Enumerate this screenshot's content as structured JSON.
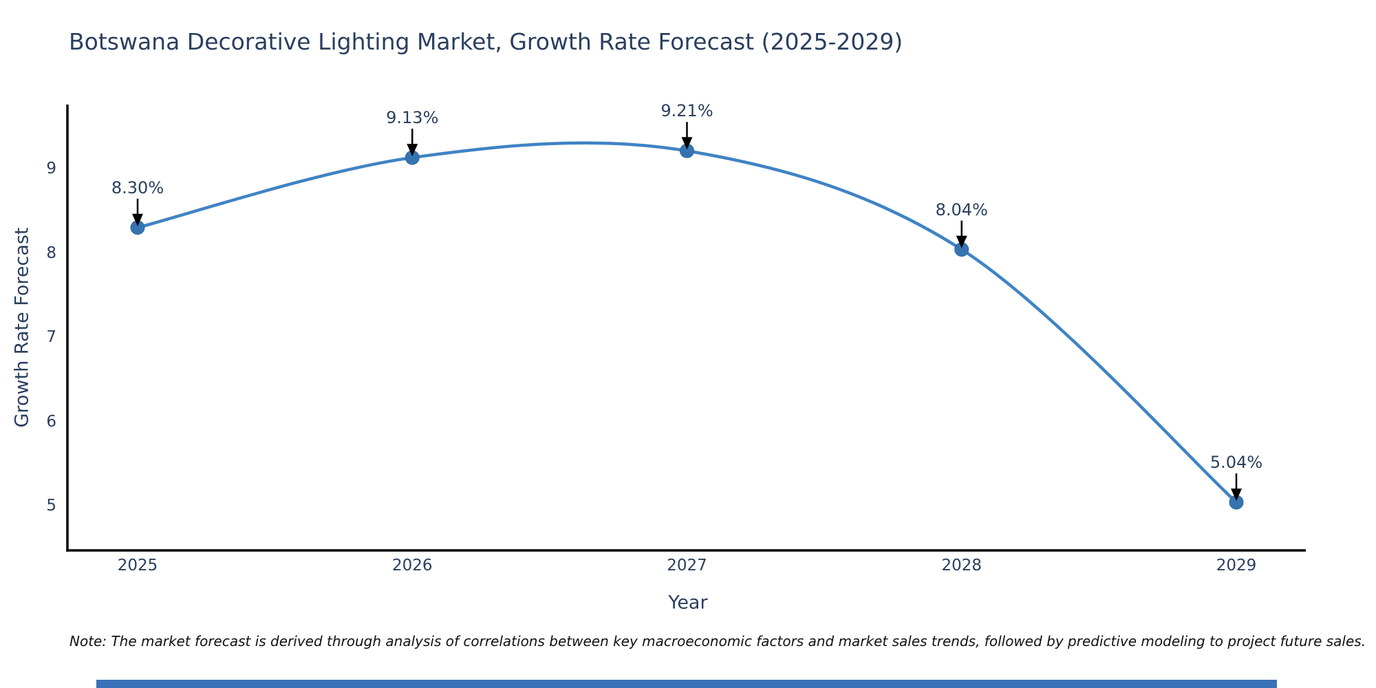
{
  "chart_data": {
    "type": "line",
    "title": "Botswana Decorative Lighting Market, Growth Rate Forecast (2025-2029)",
    "xlabel": "Year",
    "ylabel": "Growth Rate Forecast",
    "x": [
      2025,
      2026,
      2027,
      2028,
      2029
    ],
    "values": [
      8.3,
      9.13,
      9.21,
      8.04,
      5.04
    ],
    "point_labels": [
      "8.30%",
      "9.13%",
      "9.21%",
      "8.04%",
      "5.04%"
    ],
    "xticks": [
      "2025",
      "2026",
      "2027",
      "2028",
      "2029"
    ],
    "yticks": [
      5,
      6,
      7,
      8,
      9
    ],
    "xlim": [
      2024.74,
      2029.25
    ],
    "ylim": [
      4.47,
      9.76
    ],
    "grid": false,
    "legend": "none",
    "line_shape": "spline",
    "colors": {
      "line": "#3f83c4",
      "marker": "#3674b0",
      "marker_edge": "#2e689f",
      "axis": "#000000",
      "text": "#2a3f5f",
      "annotation_arrow": "#000000"
    }
  },
  "note": {
    "text": "Note: The market forecast is derived through analysis of correlations between key macroeconomic factors and market sales trends, followed by predictive modeling to project future sales."
  },
  "footer": {
    "bar_color": "#3a72b8"
  }
}
